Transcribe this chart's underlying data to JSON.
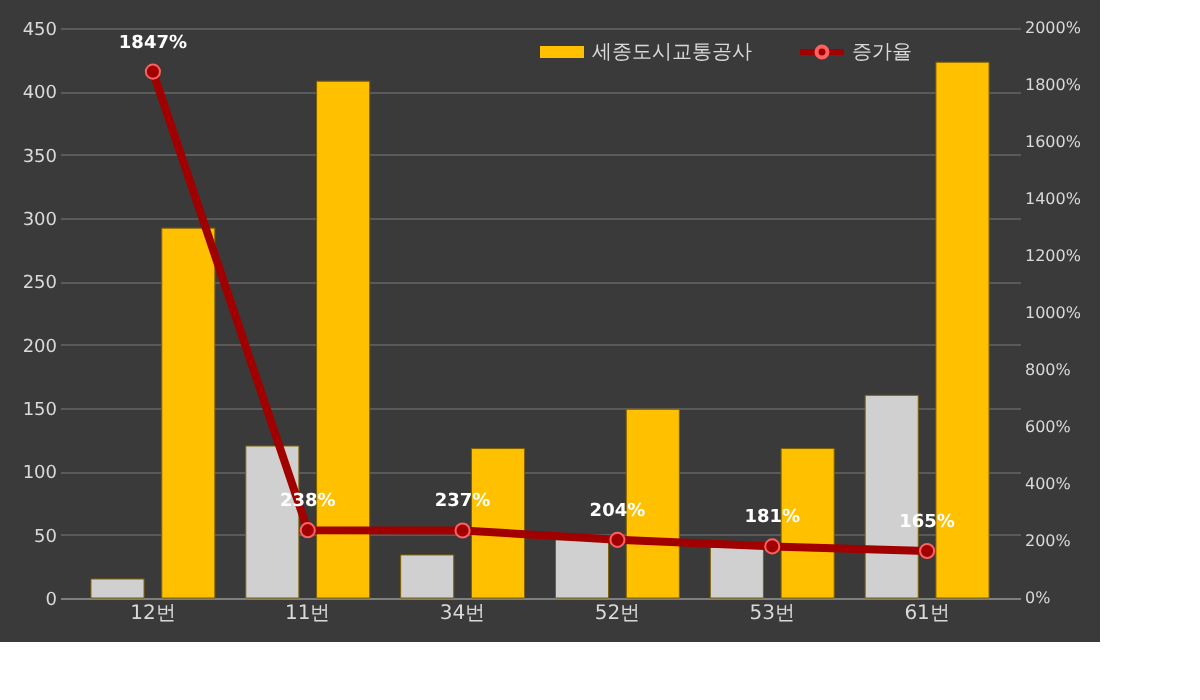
{
  "chart_data": {
    "type": "bar",
    "categories": [
      "12번",
      "11번",
      "34번",
      "52번",
      "53번",
      "61번"
    ],
    "series": [
      {
        "color": "#d0d0d0",
        "values": [
          15,
          120,
          34,
          46,
          40,
          160
        ]
      },
      {
        "name": "세종도시교통공사",
        "color": "#ffc000",
        "values": [
          292,
          408,
          118,
          149,
          118,
          423
        ]
      },
      {
        "name": "증가율",
        "type": "line",
        "axis": "y2",
        "color": "#a00000",
        "marker": "circle",
        "values": [
          1847,
          238,
          237,
          204,
          181,
          165
        ],
        "value_labels": [
          "1847%",
          "238%",
          "237%",
          "204%",
          "181%",
          "165%"
        ]
      }
    ],
    "ylim": [
      0,
      450
    ],
    "yticks": [
      0,
      50,
      100,
      150,
      200,
      250,
      300,
      350,
      400,
      450
    ],
    "y2lim": [
      0,
      2000
    ],
    "y2ticks": [
      {
        "value": 0,
        "label": "0%"
      },
      {
        "value": 200,
        "label": "200%"
      },
      {
        "value": 400,
        "label": "400%"
      },
      {
        "value": 600,
        "label": "600%"
      },
      {
        "value": 800,
        "label": "800%"
      },
      {
        "value": 1000,
        "label": "1000%"
      },
      {
        "value": 1200,
        "label": "1200%"
      },
      {
        "value": 1400,
        "label": "1400%"
      },
      {
        "value": 1600,
        "label": "1600%"
      },
      {
        "value": 1800,
        "label": "1800%"
      },
      {
        "value": 2000,
        "label": "2000%"
      }
    ],
    "grid": "y",
    "legend": "top right"
  }
}
